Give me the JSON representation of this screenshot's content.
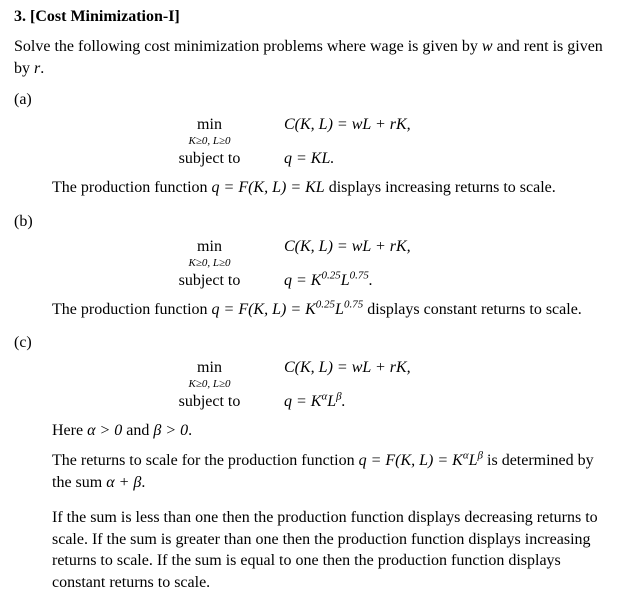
{
  "heading": "3. [Cost Minimization-I]",
  "intro_a": "Solve the following cost minimization problems where wage is given by ",
  "intro_w": "w",
  "intro_b": " and rent is given by ",
  "intro_r": "r",
  "intro_c": ".",
  "labels": {
    "a": "(a)",
    "b": "(b)",
    "c": "(c)"
  },
  "math": {
    "min": "min",
    "dom": "K≥0, L≥0",
    "cost_fn": "C(K, L) = wL + rK,",
    "subject_to": "subject to",
    "qa": "q = KL.",
    "qb_pre": "q = K",
    "qb_e1": "0.25",
    "qb_mid": "L",
    "qb_e2": "0.75",
    "qb_post": ".",
    "qc_pre": "q = K",
    "qc_e1": "α",
    "qc_mid": "L",
    "qc_e2": "β",
    "qc_post": "."
  },
  "note_a_1": "The production function ",
  "note_a_qf": "q = F(K, L) = KL",
  "note_a_2": " displays increasing returns to scale.",
  "note_b_1": "The production function ",
  "note_b_qf_pre": "q = F(K, L) = K",
  "note_b_e1": "0.25",
  "note_b_mid": "L",
  "note_b_e2": "0.75",
  "note_b_2": " displays constant returns to scale.",
  "c_here_1": "Here ",
  "c_here_a": "α > 0",
  "c_here_2": " and ",
  "c_here_b": "β > 0",
  "c_here_3": ".",
  "c_rts_1": "The returns to scale for the production function ",
  "c_rts_qf_pre": "q = F(K, L) = K",
  "c_rts_e1": "α",
  "c_rts_mid": "L",
  "c_rts_e2": "β",
  "c_rts_2": " is determined by the sum ",
  "c_rts_sum": "α + β",
  "c_rts_3": ".",
  "closing": "If the sum is less than one then the production function displays decreasing returns to scale. If the sum is greater than one then the production function displays increasing returns to scale. If the sum is equal to one then the production function displays constant returns to scale."
}
